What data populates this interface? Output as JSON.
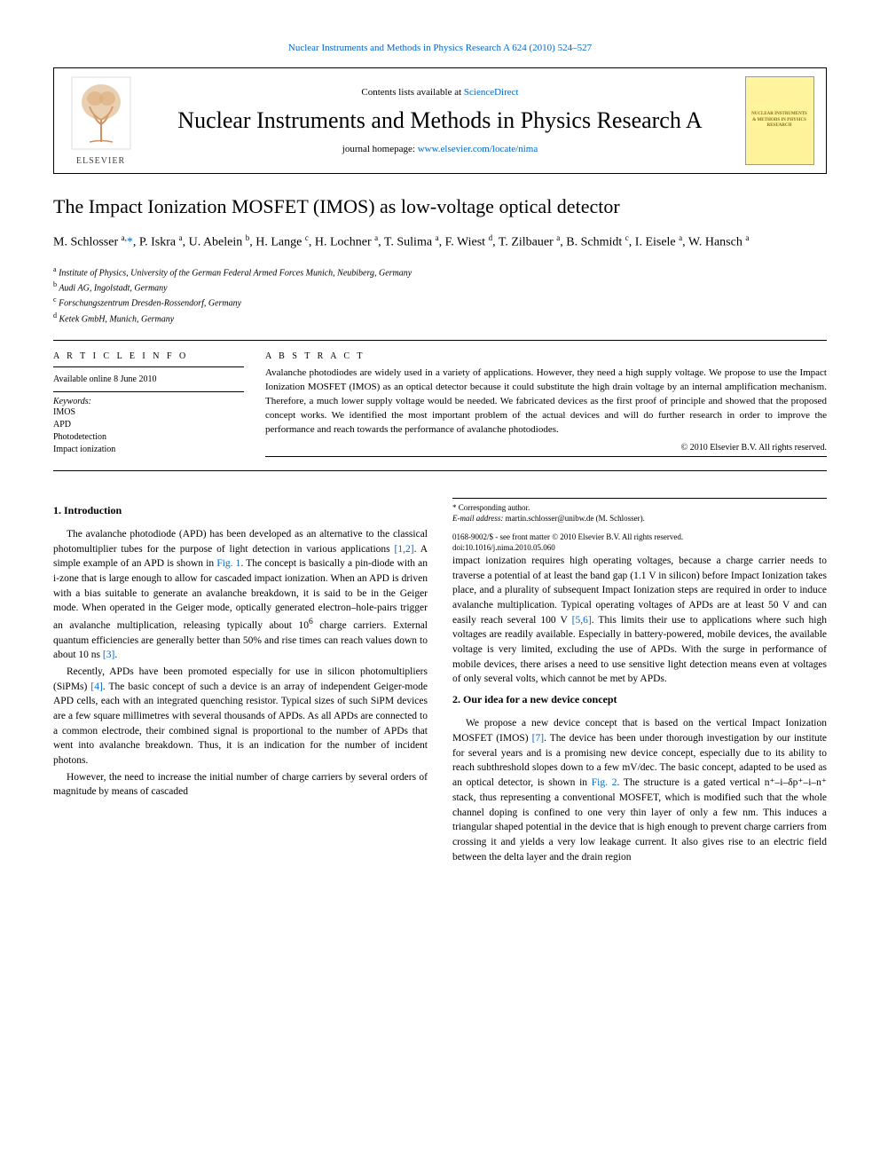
{
  "top_link": {
    "journal_name": "Nuclear Instruments and Methods in Physics Research A",
    "volume_info": "624 (2010) 524–527"
  },
  "header": {
    "contents_prefix": "Contents lists available at",
    "sciencedirect": "ScienceDirect",
    "journal_title": "Nuclear Instruments and Methods in Physics Research A",
    "homepage_prefix": "journal homepage:",
    "homepage_url": "www.elsevier.com/locate/nima",
    "publisher": "ELSEVIER",
    "cover_text": "NUCLEAR INSTRUMENTS & METHODS IN PHYSICS RESEARCH"
  },
  "article": {
    "title": "The Impact Ionization MOSFET (IMOS) as low-voltage optical detector",
    "authors_html": "M. Schlosser <sup>a,</sup><a href='#'>*</a>, P. Iskra <sup>a</sup>, U. Abelein <sup>b</sup>, H. Lange <sup>c</sup>, H. Lochner <sup>a</sup>, T. Sulima <sup>a</sup>, F. Wiest <sup>d</sup>, T. Zilbauer <sup>a</sup>, B. Schmidt <sup>c</sup>, I. Eisele <sup>a</sup>, W. Hansch <sup>a</sup>",
    "affiliations": [
      {
        "sup": "a",
        "text": "Institute of Physics, University of the German Federal Armed Forces Munich, Neubiberg, Germany"
      },
      {
        "sup": "b",
        "text": "Audi AG, Ingolstadt, Germany"
      },
      {
        "sup": "c",
        "text": "Forschungszentrum Dresden-Rossendorf, Germany"
      },
      {
        "sup": "d",
        "text": "Ketek GmbH, Munich, Germany"
      }
    ]
  },
  "info": {
    "label": "A R T I C L E  I N F O",
    "available": "Available online 8 June 2010",
    "keywords_label": "Keywords:",
    "keywords": [
      "IMOS",
      "APD",
      "Photodetection",
      "Impact ionization"
    ]
  },
  "abstract": {
    "label": "A B S T R A C T",
    "text": "Avalanche photodiodes are widely used in a variety of applications. However, they need a high supply voltage. We propose to use the Impact Ionization MOSFET (IMOS) as an optical detector because it could substitute the high drain voltage by an internal amplification mechanism. Therefore, a much lower supply voltage would be needed. We fabricated devices as the first proof of principle and showed that the proposed concept works. We identified the most important problem of the actual devices and will do further research in order to improve the performance and reach towards the performance of avalanche photodiodes.",
    "copyright": "© 2010 Elsevier B.V. All rights reserved."
  },
  "sections": {
    "s1_title": "1. Introduction",
    "s1_p1": "The avalanche photodiode (APD) has been developed as an alternative to the classical photomultiplier tubes for the purpose of light detection in various applications ",
    "s1_p1_ref1": "[1,2]",
    "s1_p1b": ". A simple example of an APD is shown in ",
    "s1_p1_fig": "Fig. 1",
    "s1_p1c": ". The concept is basically a pin-diode with an i-zone that is large enough to allow for cascaded impact ionization. When an APD is driven with a bias suitable to generate an avalanche breakdown, it is said to be in the Geiger mode. When operated in the Geiger mode, optically generated electron–hole-pairs trigger an avalanche multiplication, releasing typically about 10",
    "s1_p1_sup": "6",
    "s1_p1d": " charge carriers. External quantum efficiencies are generally better than 50% and rise times can reach values down to about 10 ns ",
    "s1_p1_ref2": "[3]",
    "s1_p1e": ".",
    "s1_p2a": "Recently, APDs have been promoted especially for use in silicon photomultipliers (SiPMs) ",
    "s1_p2_ref": "[4]",
    "s1_p2b": ". The basic concept of such a device is an array of independent Geiger-mode APD cells, each with an integrated quenching resistor. Typical sizes of such SiPM devices are a few square millimetres with several thousands of APDs. As all APDs are connected to a common electrode, their combined signal is proportional to the number of APDs that went into avalanche breakdown. Thus, it is an indication for the number of incident photons.",
    "s1_p3": "However, the need to increase the initial number of charge carriers by several orders of magnitude by means of cascaded",
    "s1_p3b": "impact ionization requires high operating voltages, because a charge carrier needs to traverse a potential of at least the band gap (1.1 V in silicon) before Impact Ionization takes place, and a plurality of subsequent Impact Ionization steps are required in order to induce avalanche multiplication. Typical operating voltages of APDs are at least 50 V and can easily reach several 100 V ",
    "s1_p3_ref": "[5,6]",
    "s1_p3c": ". This limits their use to applications where such high voltages are readily available. Especially in battery-powered, mobile devices, the available voltage is very limited, excluding the use of APDs. With the surge in performance of mobile devices, there arises a need to use sensitive light detection means even at voltages of only several volts, which cannot be met by APDs.",
    "s2_title": "2. Our idea for a new device concept",
    "s2_p1a": "We propose a new device concept that is based on the vertical Impact Ionization MOSFET (IMOS) ",
    "s2_p1_ref": "[7]",
    "s2_p1b": ". The device has been under thorough investigation by our institute for several years and is a promising new device concept, especially due to its ability to reach subthreshold slopes down to a few mV/dec. The basic concept, adapted to be used as an optical detector, is shown in ",
    "s2_p1_fig": "Fig. 2",
    "s2_p1c": ". The structure is a gated vertical n⁺–i–δp⁺–i–n⁺ stack, thus representing a conventional MOSFET, which is modified such that the whole channel doping is confined to one very thin layer of only a few nm. This induces a triangular shaped potential in the device that is high enough to prevent charge carriers from crossing it and yields a very low leakage current. It also gives rise to an electric field between the delta layer and the drain region"
  },
  "footnotes": {
    "corr": "* Corresponding author.",
    "email_label": "E-mail address:",
    "email": "martin.schlosser@unibw.de (M. Schlosser).",
    "issn": "0168-9002/$ - see front matter © 2010 Elsevier B.V. All rights reserved.",
    "doi": "doi:10.1016/j.nima.2010.05.060"
  },
  "colors": {
    "link": "#0066cc",
    "text": "#000000",
    "elsevier_orange": "#e08040",
    "bg_page": "#ffffff",
    "bg_outer": "#656770",
    "cover_bg": "#fff59e"
  }
}
